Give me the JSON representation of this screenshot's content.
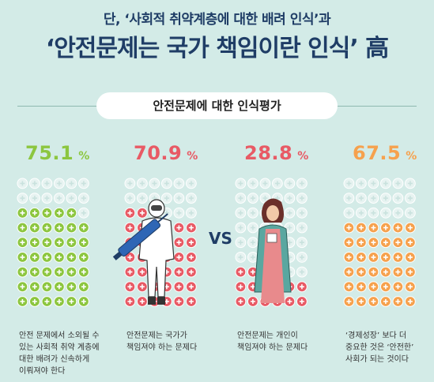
{
  "header": {
    "subtitle": "단, ‘사회적 취약계층에 대한 배려 인식’과",
    "title": "‘안전문제는 국가 책임이란 인식’ 高"
  },
  "section_label": "안전문제에 대한 인식평가",
  "vs_label": "VS",
  "colors": {
    "green": "#8cc63f",
    "red": "#e85a65",
    "orange": "#f6a14d",
    "empty": "#e7f3f1",
    "navy": "#1f3d66"
  },
  "chart_data": {
    "type": "pictogram",
    "title": "안전문제에 대한 인식평가",
    "unit": "%",
    "items": [
      {
        "value": 75.1,
        "value_label": "75.1",
        "unit": "%",
        "color": "#8cc63f",
        "caption": [
          "안전 문제에서 소외될 수",
          "있는 사회적 취약 계층에",
          "대한 배려가 신속하게",
          "이뤄져야 한다"
        ]
      },
      {
        "value": 70.9,
        "value_label": "70.9",
        "unit": "%",
        "color": "#e85a65",
        "caption": [
          "안전문제는 국가가",
          "책임져야 하는 문제다"
        ]
      },
      {
        "value": 28.8,
        "value_label": "28.8",
        "unit": "%",
        "color": "#e85a65",
        "caption": [
          "안전문제는 개인이",
          "책임져야 하는 문제다"
        ]
      },
      {
        "value": 67.5,
        "value_label": "67.5",
        "unit": "%",
        "color": "#f6a14d",
        "caption": [
          "‘경제성장’ 보다 더",
          "중요한 것은 ‘안전한’",
          "사회가 되는 것이다"
        ]
      }
    ]
  }
}
